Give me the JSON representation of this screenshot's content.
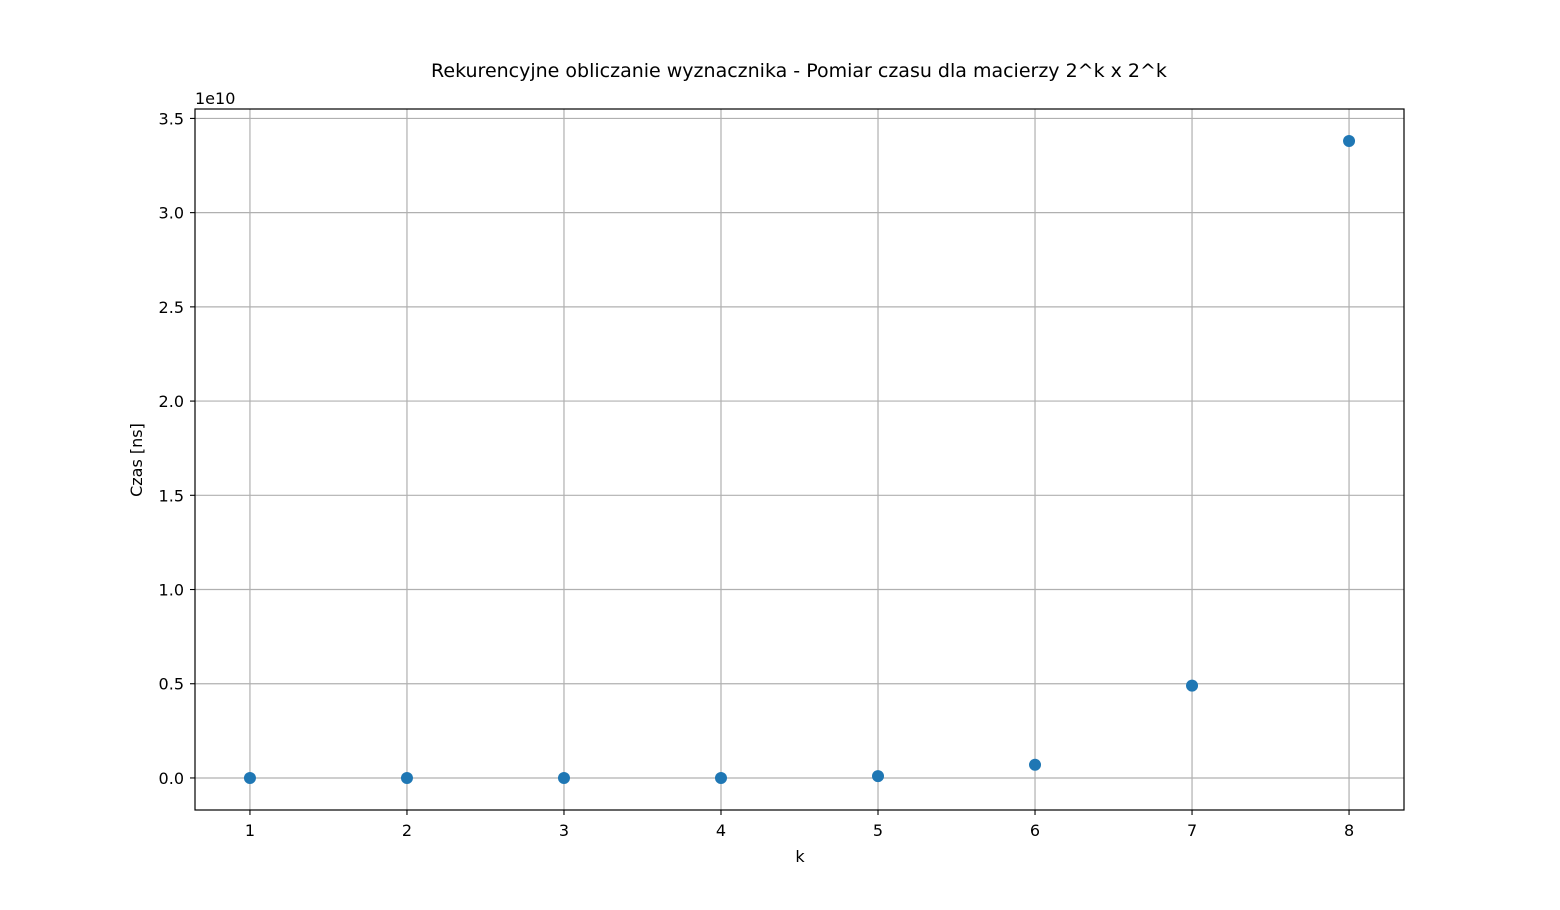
{
  "chart_data": {
    "type": "scatter",
    "title": "Rekurencyjne obliczanie wyznacznika - Pomiar czasu dla macierzy 2^k x 2^k",
    "xlabel": "k",
    "ylabel": "Czas [ns]",
    "y_offset_label": "1e10",
    "y_multiplier": 10000000000,
    "xlim": [
      0.65,
      8.35
    ],
    "ylim": [
      -0.17,
      3.55
    ],
    "x_ticks": [
      1,
      2,
      3,
      4,
      5,
      6,
      7,
      8
    ],
    "x_tick_labels": [
      "1",
      "2",
      "3",
      "4",
      "5",
      "6",
      "7",
      "8"
    ],
    "y_ticks": [
      0.0,
      0.5,
      1.0,
      1.5,
      2.0,
      2.5,
      3.0,
      3.5
    ],
    "y_tick_labels": [
      "0.0",
      "0.5",
      "1.0",
      "1.5",
      "2.0",
      "2.5",
      "3.0",
      "3.5"
    ],
    "grid": true,
    "series": [
      {
        "name": "Czas",
        "color": "#1f77b4",
        "x": [
          1,
          2,
          3,
          4,
          5,
          6,
          7,
          8
        ],
        "y": [
          0.0,
          0.0,
          0.0,
          0.0,
          0.01,
          0.07,
          0.49,
          3.38
        ]
      }
    ]
  }
}
